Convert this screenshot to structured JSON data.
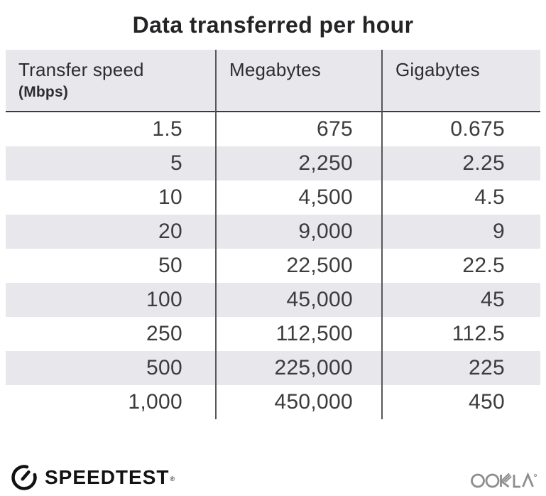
{
  "title": "Data transferred per hour",
  "chart_data": {
    "type": "table",
    "title": "Data transferred per hour",
    "columns": [
      "Transfer speed (Mbps)",
      "Megabytes",
      "Gigabytes"
    ],
    "rows": [
      [
        1.5,
        675,
        0.675
      ],
      [
        5,
        2250,
        2.25
      ],
      [
        10,
        4500,
        4.5
      ],
      [
        20,
        9000,
        9
      ],
      [
        50,
        22500,
        22.5
      ],
      [
        100,
        45000,
        45
      ],
      [
        250,
        112500,
        112.5
      ],
      [
        500,
        225000,
        225
      ],
      [
        1000,
        450000,
        450
      ]
    ]
  },
  "table": {
    "header": {
      "col1_label": "Transfer speed",
      "col1_sublabel": "(Mbps)",
      "col2_label": "Megabytes",
      "col3_label": "Gigabytes"
    },
    "rows": [
      [
        "1.5",
        "675",
        "0.675"
      ],
      [
        "5",
        "2,250",
        "2.25"
      ],
      [
        "10",
        "4,500",
        "4.5"
      ],
      [
        "20",
        "9,000",
        "9"
      ],
      [
        "50",
        "22,500",
        "22.5"
      ],
      [
        "100",
        "45,000",
        "45"
      ],
      [
        "250",
        "112,500",
        "112.5"
      ],
      [
        "500",
        "225,000",
        "225"
      ],
      [
        "1,000",
        "450,000",
        "450"
      ]
    ]
  },
  "footer": {
    "speedtest_label": "SPEEDTEST",
    "speedtest_trademark": "®",
    "ookla_label": "OOKLA"
  },
  "colors": {
    "stripe_bg": "#e8e7eb",
    "header_bg": "#e8e7eb",
    "column_divider": "#58585a",
    "header_border": "#3a3a3c",
    "title_text": "#242426",
    "number_text": "#3c3c3e",
    "speedtest_black": "#121212",
    "ookla_gray": "#8d8d8f"
  }
}
